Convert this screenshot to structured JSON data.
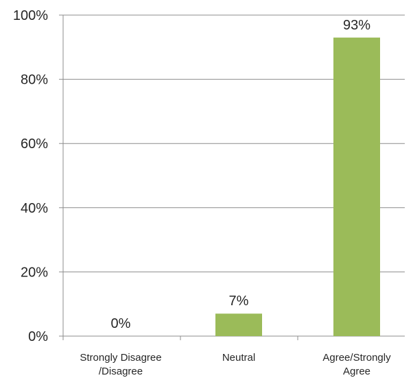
{
  "chart_data": {
    "type": "bar",
    "categories": [
      [
        "Strongly Disagree",
        "/Disagree"
      ],
      [
        "Neutral"
      ],
      [
        "Agree/Strongly",
        "Agree"
      ]
    ],
    "values": [
      0,
      7,
      93
    ],
    "value_labels": [
      "0%",
      "7%",
      "93%"
    ],
    "title": "",
    "xlabel": "",
    "ylabel": "",
    "ylim": [
      0,
      100
    ],
    "yticks": [
      0,
      20,
      40,
      60,
      80,
      100
    ],
    "ytick_labels": [
      "0%",
      "20%",
      "40%",
      "60%",
      "80%",
      "100%"
    ],
    "grid": true,
    "legend": false,
    "bar_color": "#9bbb59"
  }
}
